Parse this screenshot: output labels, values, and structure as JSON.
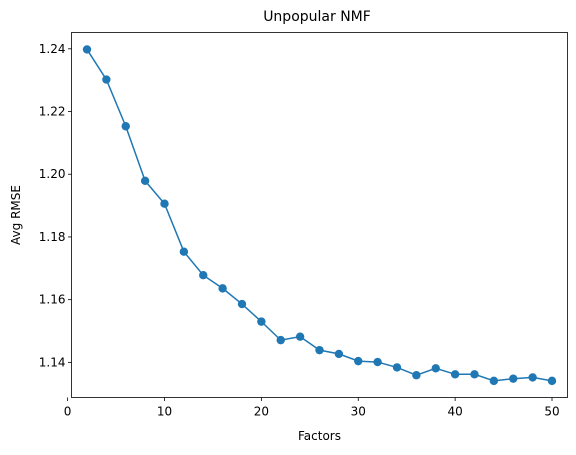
{
  "chart_data": {
    "type": "line",
    "title": "Unpopular NMF",
    "xlabel": "Factors",
    "ylabel": "Avg RMSE",
    "xlim": [
      0.4,
      51.6
    ],
    "ylim": [
      1.1288,
      1.2452
    ],
    "xticks": [
      0,
      10,
      20,
      30,
      40,
      50
    ],
    "yticks": [
      1.14,
      1.16,
      1.18,
      1.2,
      1.22,
      1.24
    ],
    "ytick_labels": [
      "1.14",
      "1.16",
      "1.18",
      "1.20",
      "1.22",
      "1.24"
    ],
    "grid": false,
    "color": "#1f77b4",
    "marker": "circle",
    "series": [
      {
        "x": [
          2,
          4,
          6,
          8,
          10,
          12,
          14,
          16,
          18,
          20,
          22,
          24,
          26,
          28,
          30,
          32,
          34,
          36,
          38,
          40,
          42,
          44,
          46,
          48,
          50
        ],
        "y": [
          1.2398,
          1.2302,
          1.2153,
          1.1979,
          1.1906,
          1.1753,
          1.1678,
          1.1636,
          1.1586,
          1.153,
          1.1471,
          1.1482,
          1.1439,
          1.1427,
          1.1404,
          1.1401,
          1.1384,
          1.1359,
          1.1381,
          1.1362,
          1.1362,
          1.1341,
          1.1348,
          1.1352,
          1.1341
        ]
      }
    ]
  }
}
